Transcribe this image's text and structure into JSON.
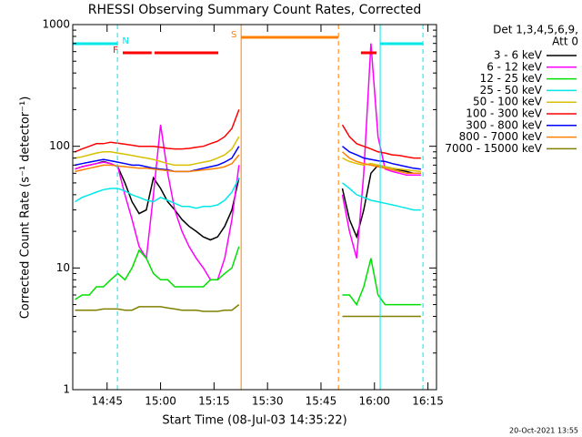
{
  "chart_data": {
    "type": "line",
    "title": "RHESSI Observing Summary Count Rates, Corrected",
    "xlabel": "Start Time (08-Jul-03 14:35:22)",
    "ylabel": "Corrected Count Rate (s⁻¹ detector⁻¹)",
    "legend_title": [
      "Det 1,3,4,5,6,9,",
      "Att 0"
    ],
    "footer": "20-Oct-2021 13:55",
    "yscale": "log",
    "legend": "right",
    "xlim": [
      875.37,
      977.4
    ],
    "ylim": [
      1,
      1000
    ],
    "yticks": [
      1,
      10,
      100,
      1000
    ],
    "xticks": [
      {
        "value": 885,
        "label": "14:45"
      },
      {
        "value": 900,
        "label": "15:00"
      },
      {
        "value": 915,
        "label": "15:15"
      },
      {
        "value": 930,
        "label": "15:30"
      },
      {
        "value": 945,
        "label": "15:45"
      },
      {
        "value": 960,
        "label": "16:00"
      },
      {
        "value": 975,
        "label": "16:15"
      }
    ],
    "x": [
      876,
      878,
      880,
      882,
      884,
      886,
      888,
      890,
      892,
      894,
      896,
      898,
      900,
      902,
      904,
      906,
      908,
      910,
      912,
      914,
      916,
      918,
      920,
      922,
      936,
      951,
      953,
      955,
      957,
      959,
      961,
      963,
      965,
      967,
      969,
      971,
      973
    ],
    "series": [
      {
        "name": "3 - 6 keV",
        "color": "#000000",
        "values": [
          65,
          68,
          70,
          72,
          75,
          72,
          68,
          50,
          35,
          28,
          30,
          55,
          45,
          35,
          30,
          25,
          22,
          20,
          18,
          17,
          18,
          22,
          30,
          55,
          null,
          45,
          25,
          18,
          30,
          60,
          70,
          68,
          66,
          64,
          62,
          60,
          60
        ]
      },
      {
        "name": "6 - 12 keV",
        "color": "#ff00ff",
        "values": [
          65,
          68,
          70,
          72,
          74,
          72,
          68,
          40,
          25,
          15,
          12,
          40,
          150,
          60,
          30,
          20,
          15,
          12,
          10,
          8,
          8,
          12,
          25,
          70,
          null,
          40,
          20,
          12,
          60,
          700,
          120,
          65,
          62,
          60,
          58,
          58,
          58
        ]
      },
      {
        "name": "12 - 25 keV",
        "color": "#00e000",
        "values": [
          5.5,
          6,
          6,
          7,
          7,
          8,
          9,
          8,
          10,
          14,
          12,
          9,
          8,
          8,
          7,
          7,
          7,
          7,
          7,
          8,
          8,
          9,
          10,
          15,
          null,
          6,
          6,
          5,
          7,
          12,
          6,
          5,
          5,
          5,
          5,
          5,
          5
        ]
      },
      {
        "name": "25 - 50 keV",
        "color": "#00e8e8",
        "values": [
          35,
          38,
          40,
          42,
          44,
          45,
          45,
          43,
          40,
          38,
          36,
          35,
          38,
          36,
          34,
          32,
          32,
          31,
          32,
          32,
          33,
          36,
          42,
          55,
          null,
          50,
          45,
          40,
          38,
          36,
          35,
          34,
          33,
          32,
          31,
          30,
          30
        ]
      },
      {
        "name": "50 - 100 keV",
        "color": "#d8c000",
        "values": [
          80,
          82,
          85,
          88,
          90,
          90,
          88,
          86,
          84,
          82,
          80,
          78,
          75,
          72,
          70,
          70,
          70,
          72,
          74,
          76,
          80,
          85,
          95,
          120,
          null,
          80,
          75,
          72,
          70,
          72,
          70,
          68,
          66,
          65,
          64,
          63,
          62
        ]
      },
      {
        "name": "100 - 300 keV",
        "color": "#ff0000",
        "values": [
          90,
          95,
          100,
          105,
          105,
          108,
          106,
          104,
          102,
          100,
          100,
          100,
          98,
          96,
          95,
          95,
          96,
          98,
          100,
          105,
          110,
          120,
          140,
          200,
          null,
          150,
          120,
          105,
          100,
          95,
          90,
          88,
          85,
          84,
          82,
          80,
          80
        ]
      },
      {
        "name": "300 - 800 keV",
        "color": "#0000ff",
        "values": [
          70,
          72,
          74,
          76,
          78,
          76,
          74,
          72,
          70,
          70,
          68,
          66,
          65,
          64,
          62,
          62,
          62,
          64,
          66,
          68,
          70,
          74,
          80,
          100,
          null,
          100,
          90,
          85,
          80,
          78,
          76,
          75,
          72,
          70,
          68,
          66,
          65
        ]
      },
      {
        "name": "800 - 7000 keV",
        "color": "#ff8000",
        "values": [
          62,
          64,
          66,
          68,
          70,
          70,
          69,
          68,
          67,
          66,
          66,
          65,
          64,
          63,
          62,
          62,
          62,
          63,
          64,
          65,
          66,
          68,
          72,
          85,
          null,
          90,
          80,
          75,
          72,
          70,
          68,
          66,
          64,
          62,
          60,
          60,
          60
        ]
      },
      {
        "name": "7000 - 15000 keV",
        "color": "#808000",
        "values": [
          4.5,
          4.5,
          4.5,
          4.5,
          4.6,
          4.6,
          4.6,
          4.5,
          4.5,
          4.8,
          4.8,
          4.8,
          4.8,
          4.7,
          4.6,
          4.5,
          4.5,
          4.5,
          4.4,
          4.4,
          4.4,
          4.5,
          4.5,
          5,
          null,
          4,
          4,
          4,
          4,
          4,
          4,
          4,
          4,
          4,
          4,
          4,
          4
        ]
      }
    ],
    "flags": [
      {
        "label": "S",
        "color": "#ff8000",
        "ranges": [
          [
            922.6,
            949.9
          ]
        ]
      },
      {
        "label": "N",
        "color": "#00e8e8",
        "ranges": [
          [
            875.37,
            887.9
          ],
          [
            961.6,
            973.6
          ]
        ]
      },
      {
        "label": "F",
        "color": "#ff0000",
        "ranges": [
          [
            889.4,
            897.5
          ],
          [
            898.3,
            916.2
          ],
          [
            956.2,
            960.6
          ]
        ]
      }
    ]
  }
}
